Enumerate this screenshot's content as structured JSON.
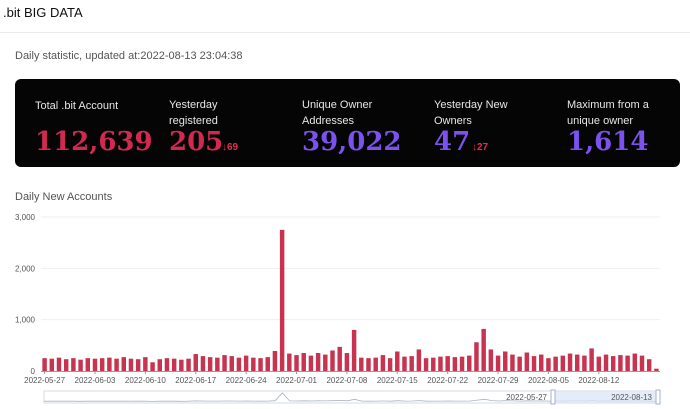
{
  "header": {
    "title": ".bit BIG DATA"
  },
  "updated": {
    "label": "Daily statistic, updated at:",
    "timestamp": "2022-08-13 23:04:38"
  },
  "stats": {
    "total": {
      "label": "Total .bit Account",
      "value": "112,639"
    },
    "yesterday_registered": {
      "label_line1": "Yesterday",
      "label_line2": "registered",
      "value": "205",
      "change_icon": "arrow-down",
      "change": "69"
    },
    "unique_owner": {
      "label_line1": "Unique Owner",
      "label_line2": "Addresses",
      "value": "39,022"
    },
    "yesterday_new_owners": {
      "label_line1": "Yesterday New",
      "label_line2": "Owners",
      "value": "47",
      "change_icon": "arrow-down",
      "change": "27"
    },
    "maximum": {
      "label_line1": "Maximum from a",
      "label_line2": "unique owner",
      "value": "1,614"
    }
  },
  "colors": {
    "accent_red": "#d2294f",
    "accent_purple": "#7b52f0",
    "panel_bg": "#050505",
    "bar": "#c8334f",
    "slider_fill": "#dce6f7"
  },
  "chart_data": {
    "type": "bar",
    "title": "Daily New Accounts",
    "ylim": [
      0,
      3000
    ],
    "yticks": [
      0,
      1000,
      2000,
      3000
    ],
    "ytick_labels": [
      "0",
      "1,000",
      "2,000",
      "3,000"
    ],
    "xtick_labels": [
      "2022-05-27",
      "2022-06-03",
      "2022-06-10",
      "2022-06-17",
      "2022-06-24",
      "2022-07-01",
      "2022-07-08",
      "2022-07-15",
      "2022-07-22",
      "2022-07-29",
      "2022-08-05",
      "2022-08-12"
    ],
    "start_date": "2022-05-27",
    "end_date": "2022-08-13",
    "values": [
      250,
      240,
      260,
      230,
      250,
      220,
      250,
      240,
      250,
      260,
      240,
      270,
      240,
      230,
      270,
      170,
      230,
      250,
      240,
      220,
      240,
      330,
      290,
      270,
      260,
      310,
      290,
      260,
      300,
      260,
      250,
      270,
      390,
      2750,
      340,
      310,
      350,
      300,
      350,
      320,
      400,
      470,
      350,
      800,
      260,
      250,
      260,
      310,
      250,
      380,
      280,
      290,
      420,
      250,
      260,
      280,
      290,
      270,
      280,
      300,
      560,
      820,
      420,
      300,
      380,
      320,
      280,
      360,
      290,
      320,
      250,
      280,
      300,
      340,
      320,
      300,
      440,
      280,
      320,
      290,
      310,
      300,
      340,
      300,
      230,
      45
    ],
    "slider": {
      "start_label": "2022-05-27",
      "end_label": "2022-08-13"
    }
  }
}
